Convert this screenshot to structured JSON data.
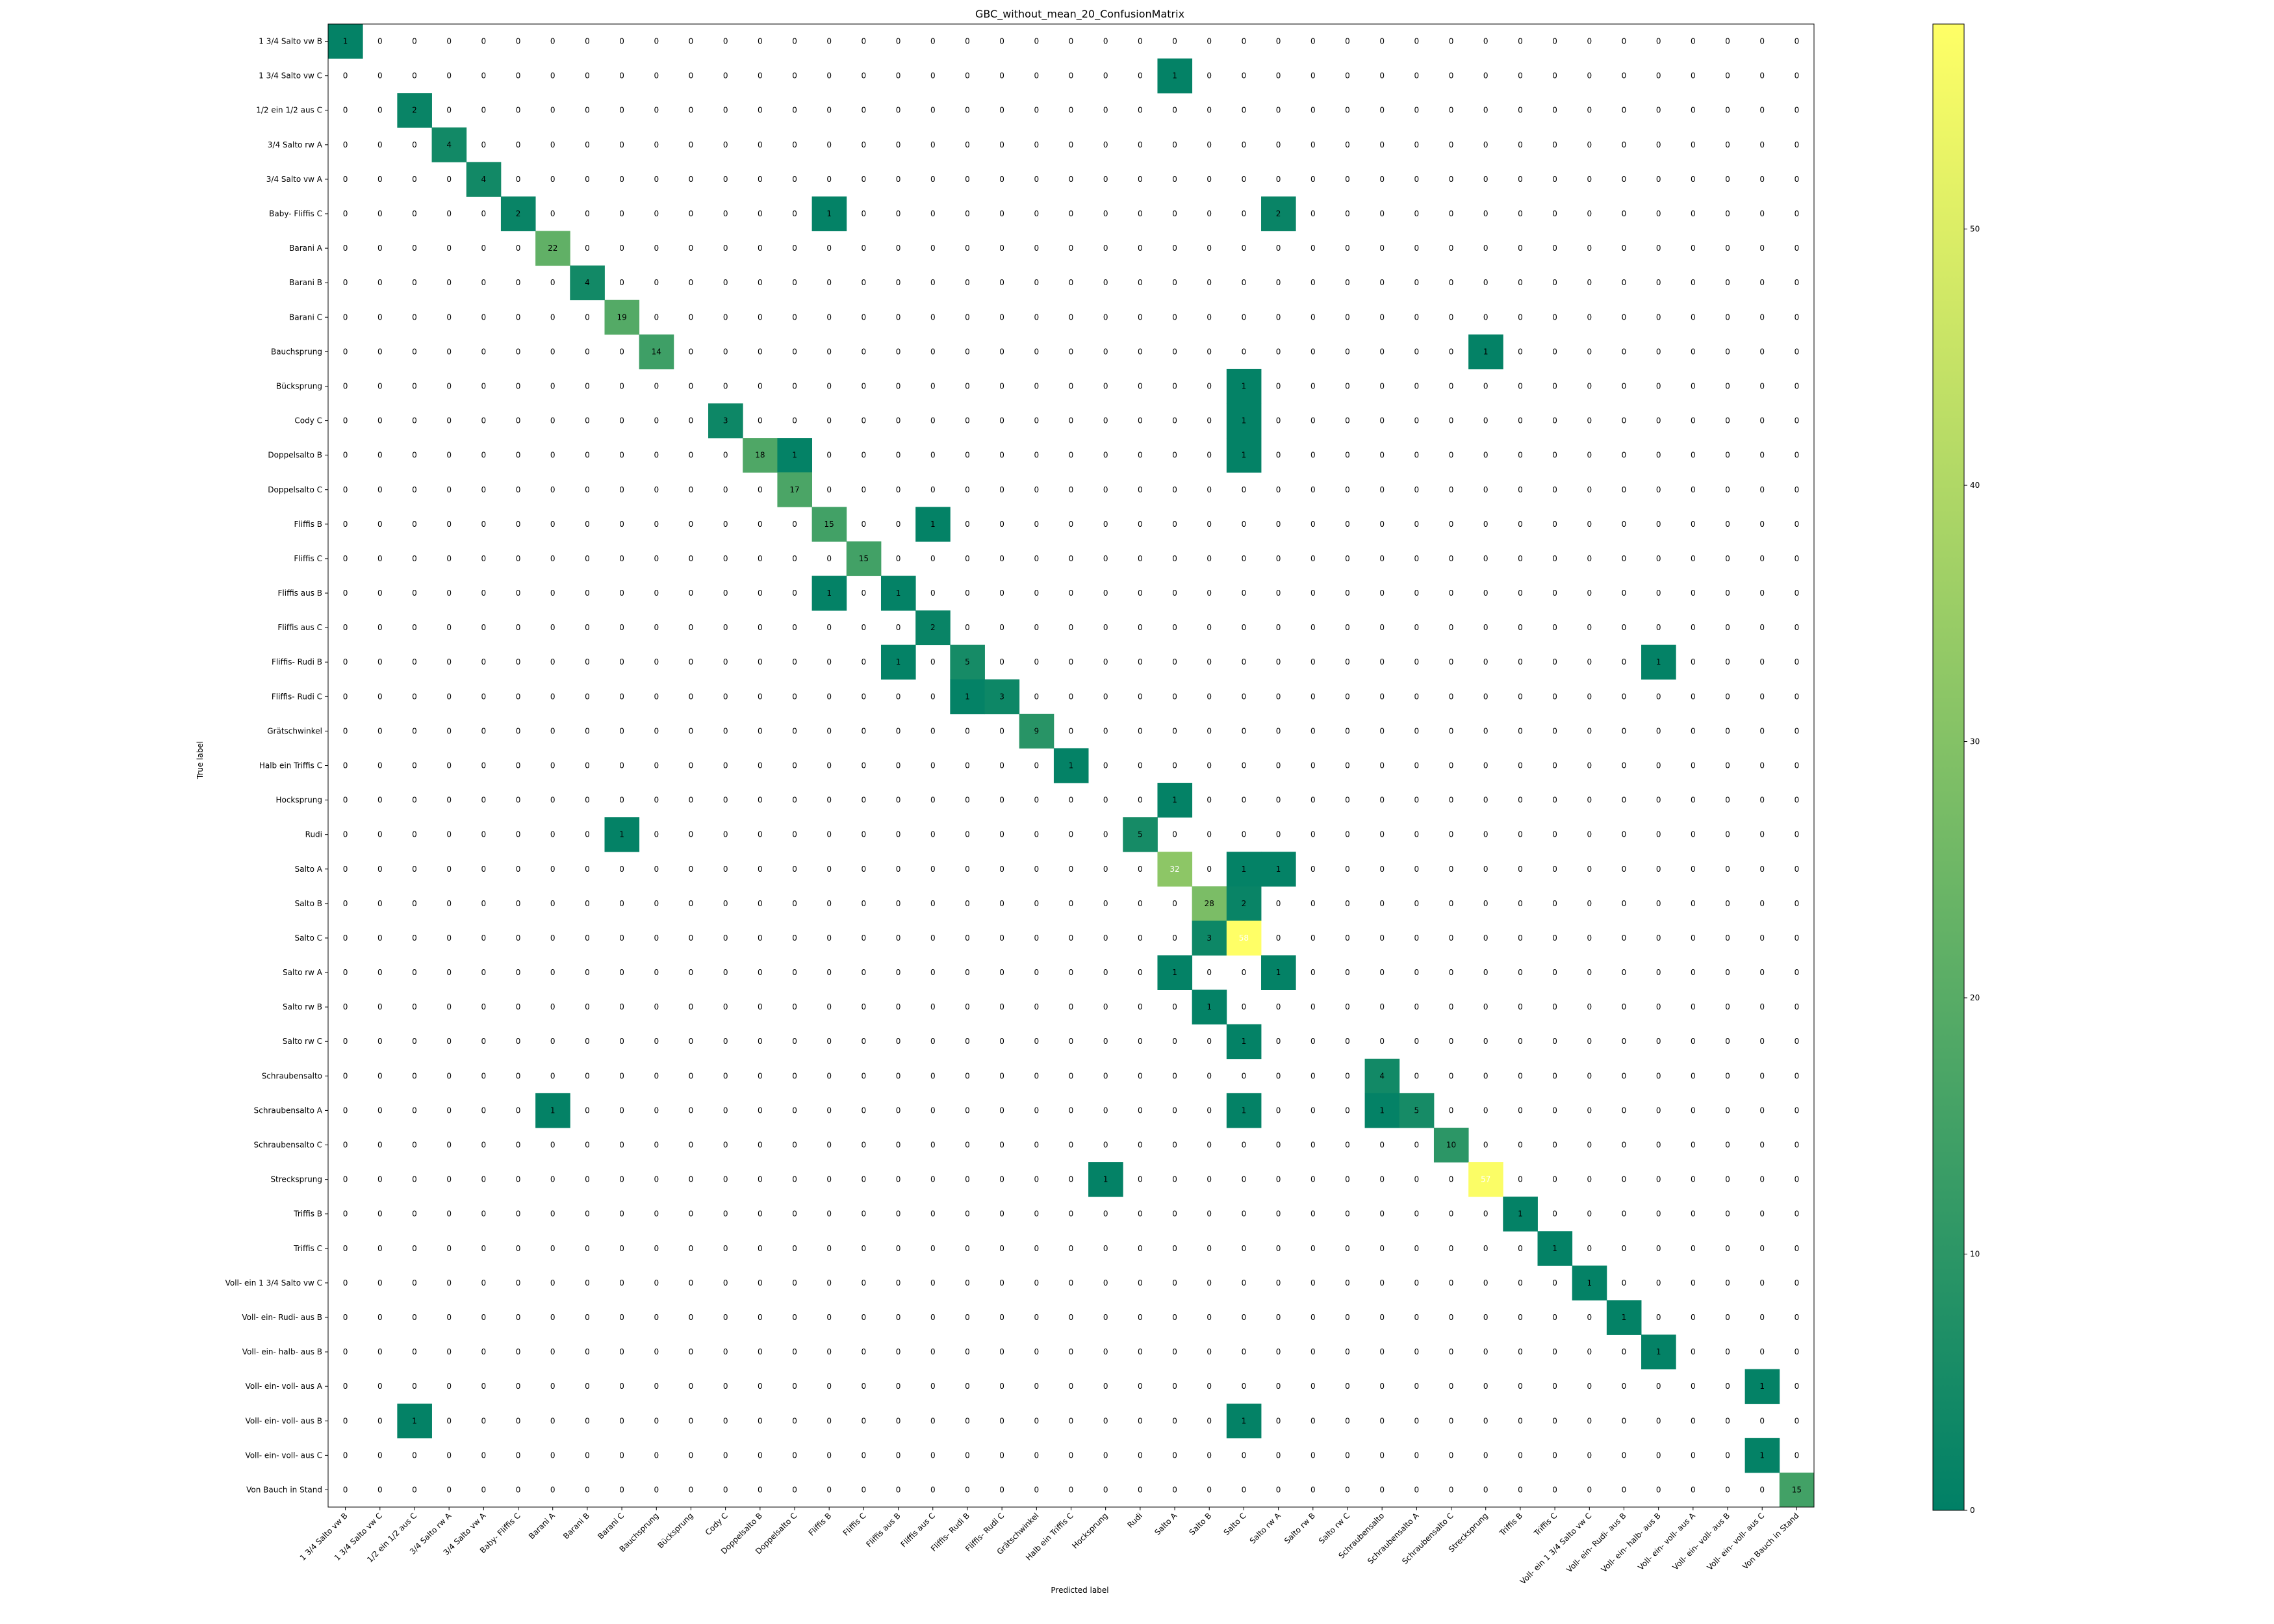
{
  "chart_data": {
    "type": "heatmap",
    "title": "GBC_without_mean_20_ConfusionMatrix",
    "xlabel": "Predicted label",
    "ylabel": "True label",
    "labels": [
      "1 3/4 Salto vw B",
      "1 3/4 Salto vw C",
      "1/2 ein 1/2 aus C",
      "3/4 Salto rw A",
      "3/4 Salto vw A",
      "Baby- Fliffis C",
      "Barani A",
      "Barani B",
      "Barani C",
      "Bauchsprung",
      "Bücksprung",
      "Cody C",
      "Doppelsalto B",
      "Doppelsalto C",
      "Fliffis B",
      "Fliffis C",
      "Fliffis aus B",
      "Fliffis aus C",
      "Fliffis- Rudi B",
      "Fliffis- Rudi C",
      "Grätschwinkel",
      "Halb ein Triffis C",
      "Hocksprung",
      "Rudi",
      "Salto A",
      "Salto B",
      "Salto C",
      "Salto rw A",
      "Salto rw B",
      "Salto rw C",
      "Schraubensalto",
      "Schraubensalto A",
      "Schraubensalto C",
      "Strecksprung",
      "Triffis B",
      "Triffis C",
      "Voll- ein 1 3/4 Salto vw C",
      "Voll- ein- Rudi- aus B",
      "Voll- ein- halb- aus B",
      "Voll- ein- voll- aus A",
      "Voll- ein- voll- aus B",
      "Voll- ein- voll- aus C",
      "Von Bauch in Stand"
    ],
    "entries": [
      [
        0,
        0,
        1
      ],
      [
        1,
        24,
        1
      ],
      [
        2,
        2,
        2
      ],
      [
        3,
        3,
        4
      ],
      [
        4,
        4,
        4
      ],
      [
        5,
        5,
        2
      ],
      [
        5,
        14,
        1
      ],
      [
        5,
        27,
        2
      ],
      [
        6,
        6,
        22
      ],
      [
        7,
        7,
        4
      ],
      [
        8,
        8,
        19
      ],
      [
        9,
        9,
        14
      ],
      [
        9,
        33,
        1
      ],
      [
        10,
        26,
        1
      ],
      [
        11,
        11,
        3
      ],
      [
        11,
        26,
        1
      ],
      [
        12,
        12,
        18
      ],
      [
        12,
        13,
        1
      ],
      [
        12,
        26,
        1
      ],
      [
        13,
        13,
        17
      ],
      [
        14,
        14,
        15
      ],
      [
        14,
        17,
        1
      ],
      [
        15,
        15,
        15
      ],
      [
        16,
        14,
        1
      ],
      [
        16,
        16,
        1
      ],
      [
        17,
        17,
        2
      ],
      [
        18,
        16,
        1
      ],
      [
        18,
        18,
        5
      ],
      [
        18,
        38,
        1
      ],
      [
        19,
        18,
        1
      ],
      [
        19,
        19,
        3
      ],
      [
        20,
        20,
        9
      ],
      [
        21,
        21,
        1
      ],
      [
        22,
        24,
        1
      ],
      [
        23,
        8,
        1
      ],
      [
        23,
        23,
        5
      ],
      [
        24,
        24,
        32
      ],
      [
        24,
        26,
        1
      ],
      [
        24,
        27,
        1
      ],
      [
        25,
        25,
        28
      ],
      [
        25,
        26,
        2
      ],
      [
        26,
        25,
        3
      ],
      [
        26,
        26,
        58
      ],
      [
        27,
        24,
        1
      ],
      [
        27,
        27,
        1
      ],
      [
        28,
        25,
        1
      ],
      [
        29,
        26,
        1
      ],
      [
        30,
        30,
        4
      ],
      [
        31,
        6,
        1
      ],
      [
        31,
        26,
        1
      ],
      [
        31,
        30,
        1
      ],
      [
        31,
        31,
        5
      ],
      [
        32,
        32,
        10
      ],
      [
        33,
        22,
        1
      ],
      [
        33,
        33,
        57
      ],
      [
        34,
        34,
        1
      ],
      [
        35,
        35,
        1
      ],
      [
        36,
        36,
        1
      ],
      [
        37,
        37,
        1
      ],
      [
        38,
        38,
        1
      ],
      [
        39,
        41,
        1
      ],
      [
        40,
        2,
        1
      ],
      [
        40,
        26,
        1
      ],
      [
        41,
        41,
        1
      ],
      [
        42,
        42,
        15
      ]
    ],
    "zmin": 0,
    "zmax": 58,
    "colorbar_ticks": [
      0,
      10,
      20,
      30,
      40,
      50
    ],
    "colormap": [
      "#008066",
      "#ffff66"
    ]
  }
}
